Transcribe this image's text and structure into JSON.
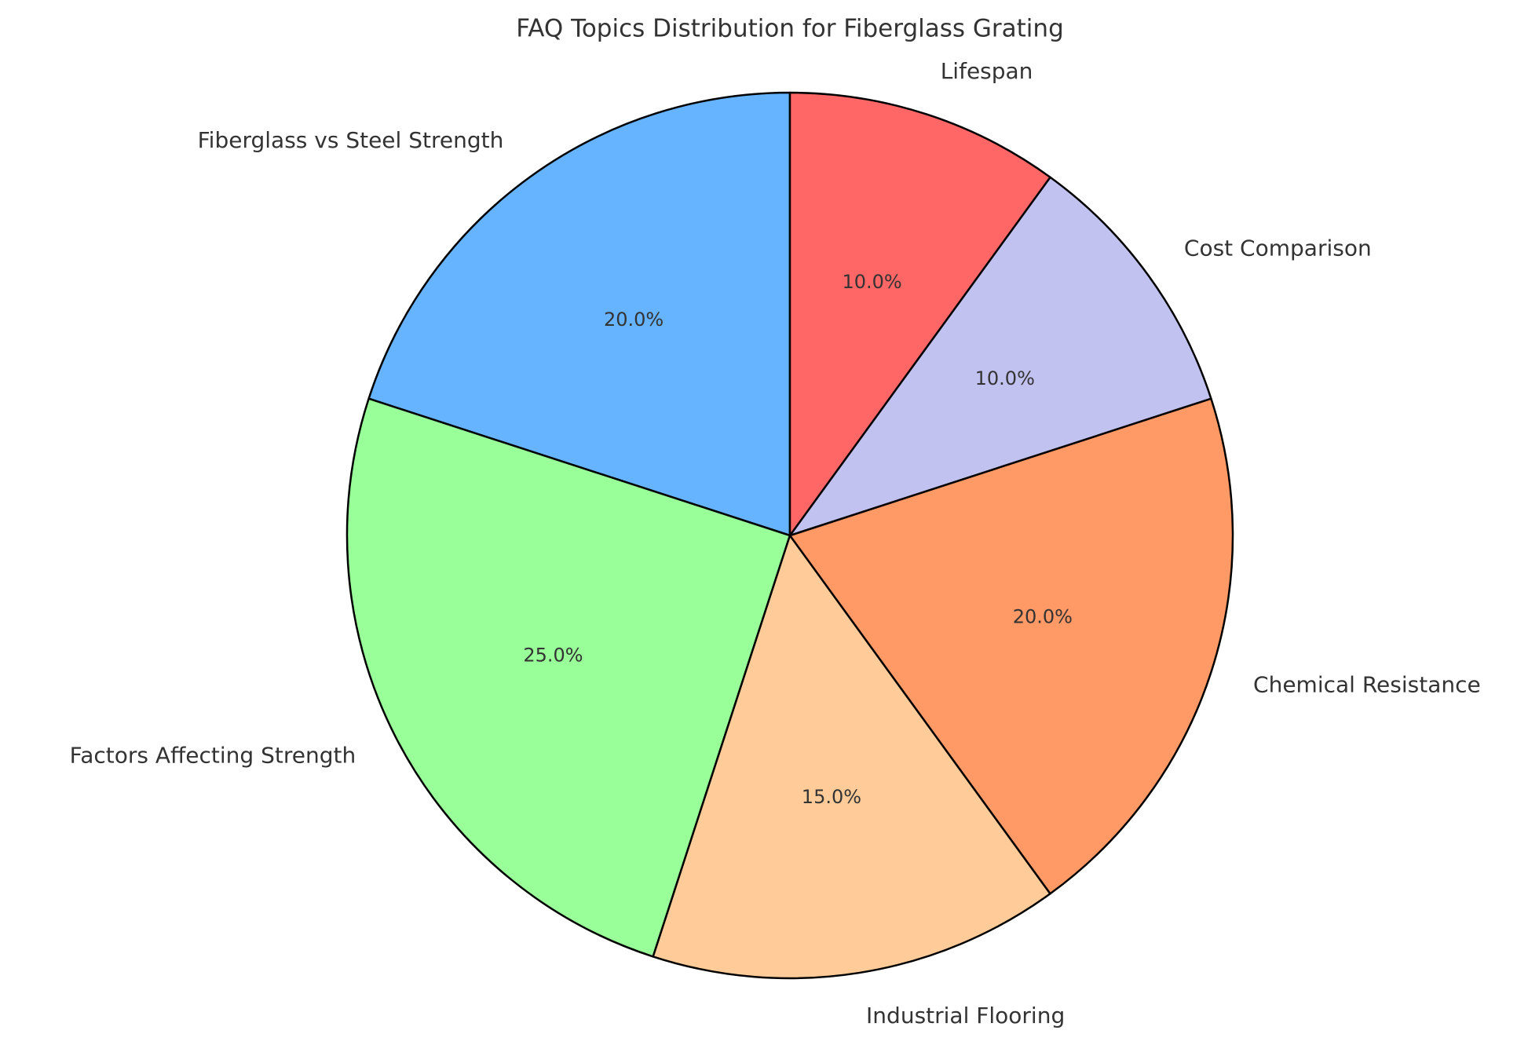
{
  "chart_data": {
    "type": "pie",
    "title": "FAQ Topics Distribution for Fiberglass Grating",
    "categories": [
      "Fiberglass vs Steel Strength",
      "Factors Affecting Strength",
      "Industrial Flooring",
      "Chemical Resistance",
      "Cost Comparison",
      "Lifespan"
    ],
    "values": [
      20,
      25,
      15,
      20,
      10,
      10
    ],
    "value_labels": [
      "20.0%",
      "25.0%",
      "15.0%",
      "20.0%",
      "10.0%",
      "10.0%"
    ],
    "colors": [
      "#66b3ff",
      "#99ff99",
      "#ffcc99",
      "#ff9966",
      "#c2c2f0",
      "#ff6666"
    ],
    "start_angle": 90
  }
}
